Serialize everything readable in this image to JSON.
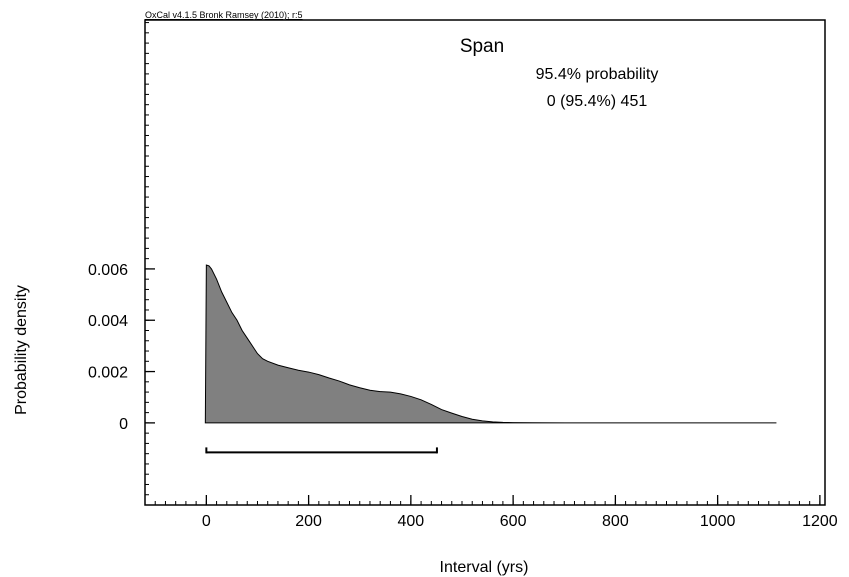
{
  "header_note": "OxCal v4.1.5 Bronk Ramsey (2010); r:5",
  "chart_data": {
    "type": "area",
    "title": "Span",
    "annotations": [
      "95.4% probability",
      "0 (95.4%) 451"
    ],
    "xlabel": "Interval (yrs)",
    "ylabel": "Probability density",
    "xlim": [
      -120,
      1210
    ],
    "ylim": [
      -0.0032,
      0.0157
    ],
    "x_ticks": [
      0,
      200,
      400,
      600,
      800,
      1000,
      1200
    ],
    "x_tick_labels": [
      "0",
      "200",
      "400",
      "600",
      "800",
      "1000",
      "1200"
    ],
    "x_minor_step": 20,
    "y_ticks": [
      0,
      0.002,
      0.004,
      0.006
    ],
    "y_tick_labels": [
      "0",
      "0.002",
      "0.004",
      "0.006"
    ],
    "y_minor_step": 0.0004,
    "grid": false,
    "fill_color": "#808080",
    "outline_color": "#000000",
    "range_bar": {
      "label": "95.4%",
      "from": 0,
      "to": 451,
      "y": -0.00115
    },
    "series": [
      {
        "x": [
          -2,
          0,
          5,
          10,
          20,
          30,
          40,
          50,
          60,
          70,
          80,
          90,
          100,
          110,
          120,
          140,
          160,
          180,
          200,
          220,
          240,
          260,
          280,
          300,
          320,
          340,
          360,
          380,
          400,
          420,
          440,
          460,
          480,
          500,
          520,
          540,
          560,
          580,
          600,
          640,
          700,
          800,
          900,
          1000,
          1115
        ],
        "y": [
          0,
          0.00615,
          0.00612,
          0.006,
          0.0056,
          0.0051,
          0.0047,
          0.0043,
          0.004,
          0.0036,
          0.0033,
          0.003,
          0.0027,
          0.0025,
          0.0024,
          0.00225,
          0.00215,
          0.00205,
          0.00198,
          0.00188,
          0.00175,
          0.00163,
          0.00148,
          0.00137,
          0.00127,
          0.00122,
          0.0012,
          0.00113,
          0.00103,
          0.0009,
          0.00072,
          0.00052,
          0.00038,
          0.00025,
          0.00014,
          8e-05,
          4e-05,
          2e-05,
          1e-05,
          3e-06,
          1e-06,
          0,
          0,
          0,
          0
        ]
      }
    ]
  }
}
